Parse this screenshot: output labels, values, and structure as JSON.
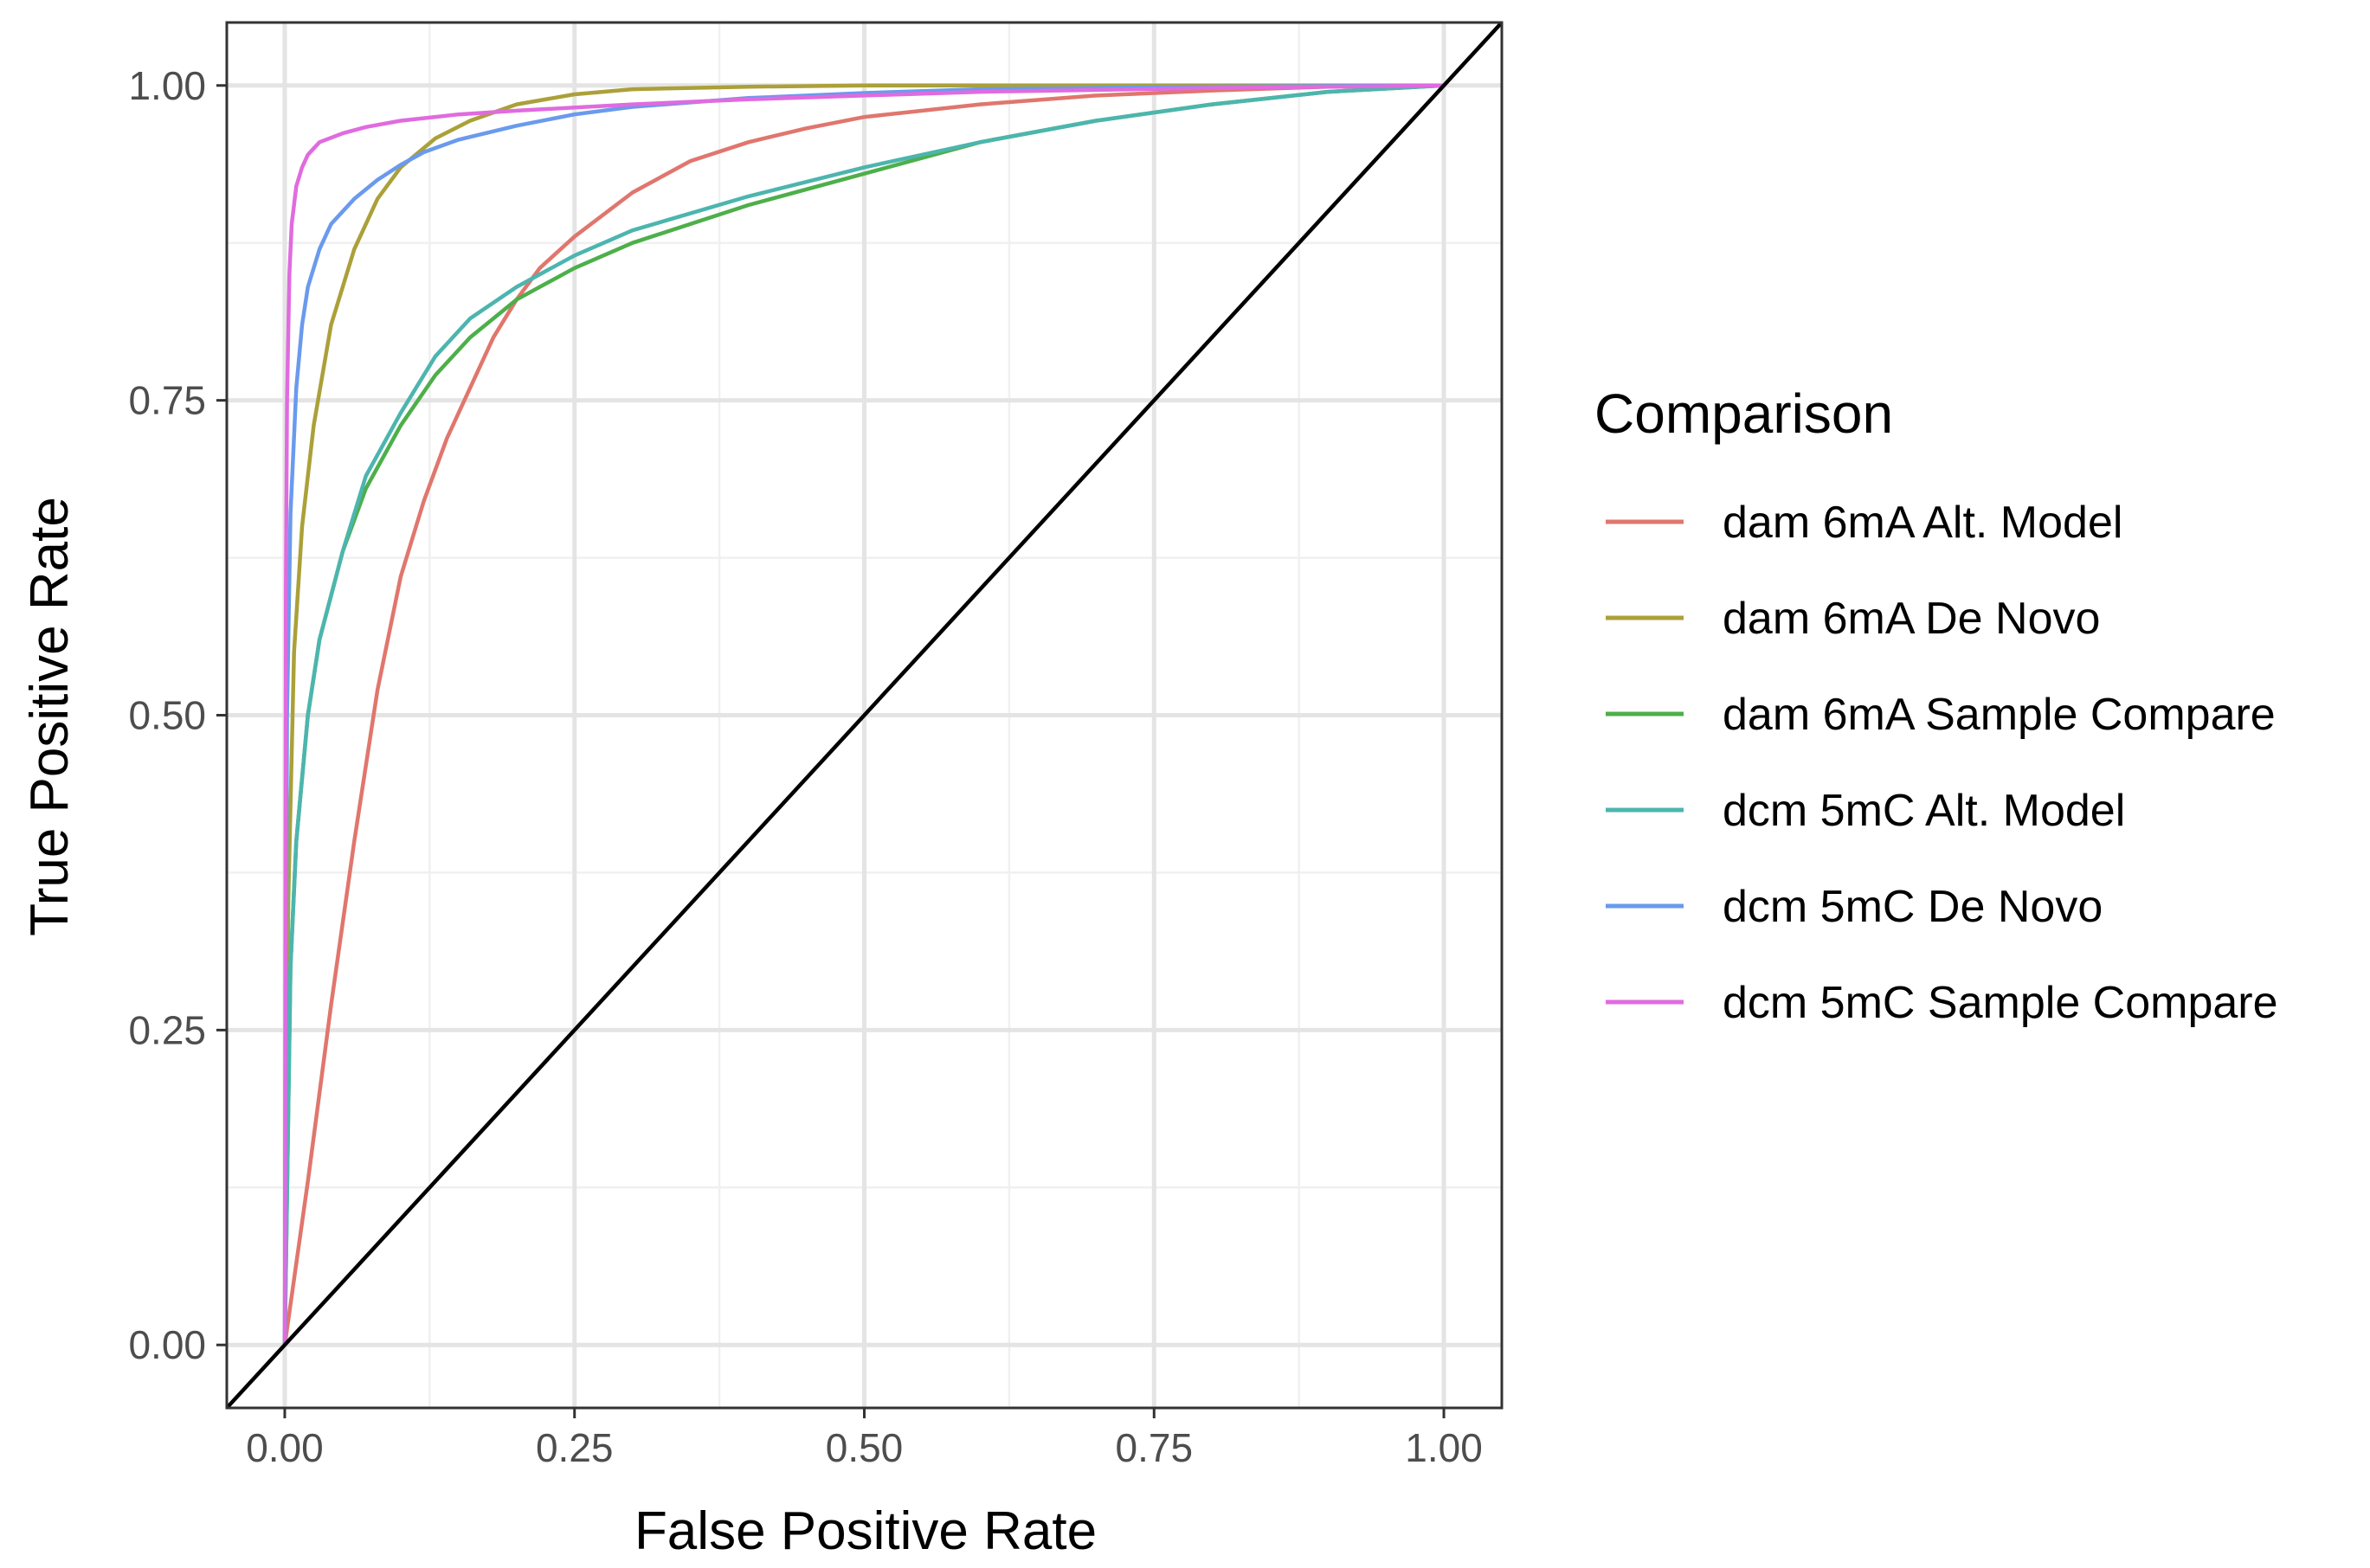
{
  "chart_data": {
    "type": "line",
    "title": "",
    "xlabel": "False Positive Rate",
    "ylabel": "True Positive Rate",
    "xlim": [
      -0.05,
      1.05
    ],
    "ylim": [
      -0.05,
      1.05
    ],
    "x_ticks": [
      "0.00",
      "0.25",
      "0.50",
      "0.75",
      "1.00"
    ],
    "y_ticks": [
      "0.00",
      "0.25",
      "0.50",
      "0.75",
      "1.00"
    ],
    "grid": true,
    "legend_title": "Comparison",
    "legend_position": "right",
    "reference_line": {
      "x": [
        -0.05,
        1.05
      ],
      "y": [
        -0.05,
        1.05
      ],
      "color": "#000000"
    },
    "series": [
      {
        "name": "dam 6mA Alt. Model",
        "color": "#E0766D",
        "x": [
          0,
          0.02,
          0.04,
          0.06,
          0.08,
          0.1,
          0.12,
          0.14,
          0.16,
          0.18,
          0.2,
          0.22,
          0.25,
          0.3,
          0.35,
          0.4,
          0.45,
          0.5,
          0.6,
          0.7,
          0.8,
          0.9,
          1.0
        ],
        "y": [
          0,
          0.13,
          0.27,
          0.4,
          0.52,
          0.61,
          0.67,
          0.72,
          0.76,
          0.8,
          0.83,
          0.855,
          0.88,
          0.915,
          0.94,
          0.955,
          0.966,
          0.975,
          0.985,
          0.992,
          0.996,
          0.999,
          1.0
        ]
      },
      {
        "name": "dam 6mA De Novo",
        "color": "#ABA039",
        "x": [
          0,
          0.003,
          0.008,
          0.015,
          0.025,
          0.04,
          0.06,
          0.08,
          0.1,
          0.13,
          0.16,
          0.2,
          0.25,
          0.3,
          0.4,
          0.5,
          0.7,
          1.0
        ],
        "y": [
          0,
          0.35,
          0.55,
          0.65,
          0.73,
          0.81,
          0.87,
          0.91,
          0.935,
          0.958,
          0.972,
          0.985,
          0.993,
          0.997,
          0.999,
          1.0,
          1.0,
          1.0
        ]
      },
      {
        "name": "dam 6mA Sample Compare",
        "color": "#4DAF4A",
        "x": [
          0,
          0.005,
          0.01,
          0.02,
          0.03,
          0.05,
          0.07,
          0.1,
          0.13,
          0.16,
          0.2,
          0.25,
          0.3,
          0.4,
          0.5,
          0.6,
          0.7,
          0.8,
          0.9,
          1.0
        ],
        "y": [
          0,
          0.3,
          0.4,
          0.5,
          0.56,
          0.63,
          0.68,
          0.73,
          0.77,
          0.8,
          0.83,
          0.855,
          0.875,
          0.905,
          0.93,
          0.955,
          0.972,
          0.985,
          0.995,
          1.0
        ]
      },
      {
        "name": "dcm 5mC Alt. Model",
        "color": "#4CB5AE",
        "x": [
          0,
          0.005,
          0.01,
          0.02,
          0.03,
          0.05,
          0.07,
          0.1,
          0.13,
          0.16,
          0.2,
          0.25,
          0.3,
          0.4,
          0.5,
          0.6,
          0.7,
          0.8,
          0.9,
          1.0
        ],
        "y": [
          0,
          0.3,
          0.4,
          0.5,
          0.56,
          0.63,
          0.69,
          0.74,
          0.785,
          0.815,
          0.84,
          0.865,
          0.885,
          0.912,
          0.935,
          0.955,
          0.972,
          0.985,
          0.995,
          1.0
        ]
      },
      {
        "name": "dcm 5mC De Novo",
        "color": "#6A9AED",
        "x": [
          0,
          0.002,
          0.005,
          0.01,
          0.015,
          0.02,
          0.03,
          0.04,
          0.06,
          0.08,
          0.1,
          0.12,
          0.15,
          0.2,
          0.25,
          0.3,
          0.4,
          0.5,
          0.6,
          0.8,
          1.0
        ],
        "y": [
          0,
          0.5,
          0.66,
          0.76,
          0.81,
          0.84,
          0.87,
          0.89,
          0.91,
          0.925,
          0.937,
          0.947,
          0.957,
          0.968,
          0.977,
          0.983,
          0.99,
          0.994,
          0.997,
          0.999,
          1.0
        ]
      },
      {
        "name": "dcm 5mC Sample Compare",
        "color": "#E06BDF",
        "x": [
          0,
          0.001,
          0.002,
          0.004,
          0.006,
          0.01,
          0.015,
          0.02,
          0.03,
          0.05,
          0.07,
          0.1,
          0.15,
          0.2,
          0.3,
          0.4,
          0.5,
          0.6,
          0.8,
          1.0
        ],
        "y": [
          0,
          0.6,
          0.75,
          0.85,
          0.89,
          0.92,
          0.935,
          0.945,
          0.955,
          0.962,
          0.967,
          0.972,
          0.977,
          0.98,
          0.985,
          0.989,
          0.992,
          0.995,
          0.998,
          1.0
        ]
      }
    ]
  }
}
